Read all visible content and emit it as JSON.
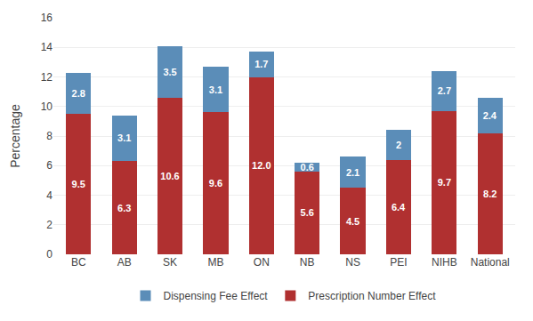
{
  "chart_data": {
    "type": "bar",
    "stacked": true,
    "categories": [
      "BC",
      "AB",
      "SK",
      "MB",
      "ON",
      "NB",
      "NS",
      "PEI",
      "NIHB",
      "National"
    ],
    "series": [
      {
        "name": "Prescription Number Effect",
        "color": "#b03030",
        "values": [
          9.5,
          6.3,
          10.6,
          9.6,
          12.0,
          5.6,
          4.5,
          6.4,
          9.7,
          8.2
        ],
        "value_labels": [
          "9.5",
          "6.3",
          "10.6",
          "9.6",
          "12.0",
          "5.6",
          "4.5",
          "6.4",
          "9.7",
          "8.2"
        ]
      },
      {
        "name": "Dispensing Fee Effect",
        "color": "#5b8db8",
        "values": [
          2.8,
          3.1,
          3.5,
          3.1,
          1.7,
          0.6,
          2.1,
          2.0,
          2.7,
          2.4
        ]
      }
    ],
    "ylabel": "Percentage",
    "ylim": [
      0,
      16
    ],
    "yticks": [
      0,
      2,
      4,
      6,
      8,
      10,
      12,
      14,
      16
    ],
    "grid": true,
    "legend": "bottom",
    "data_labels": true
  }
}
